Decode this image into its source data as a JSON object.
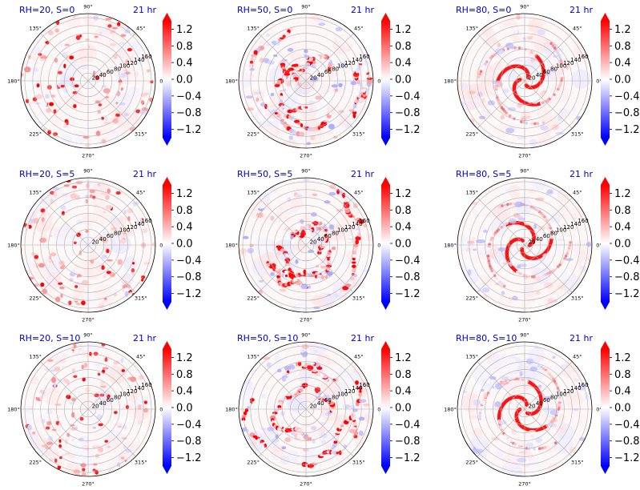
{
  "chart_data": {
    "type": "heatmap",
    "projection": "polar",
    "layout": "3x3 grid",
    "angle_ticks": [
      "0°",
      "45°",
      "90°",
      "135°",
      "180°",
      "225°",
      "270°",
      "315°"
    ],
    "radial_ticks": [
      "20",
      "40",
      "60",
      "80",
      "100",
      "120",
      "140",
      "160"
    ],
    "rlim": [
      0,
      170
    ],
    "grid": true,
    "colorbar": {
      "cmap": "bwr",
      "vmin": -1.4,
      "vmax": 1.4,
      "extend": "both",
      "ticks": [
        "1.2",
        "0.8",
        "0.4",
        "0.0",
        "−0.4",
        "−0.8",
        "−1.2"
      ],
      "colors": {
        "negative": "#0000ff",
        "zero": "#ffffff",
        "positive": "#ff0000"
      }
    },
    "panels": [
      {
        "title": "RH=20, S=0",
        "time": "21 hr",
        "pattern": "scattered"
      },
      {
        "title": "RH=50, S=0",
        "time": "21 hr",
        "pattern": "bands"
      },
      {
        "title": "RH=80, S=0",
        "time": "21 hr",
        "pattern": "spiral"
      },
      {
        "title": "RH=20, S=5",
        "time": "21 hr",
        "pattern": "scattered"
      },
      {
        "title": "RH=50, S=5",
        "time": "21 hr",
        "pattern": "bands"
      },
      {
        "title": "RH=80, S=5",
        "time": "21 hr",
        "pattern": "spiral"
      },
      {
        "title": "RH=20, S=10",
        "time": "21 hr",
        "pattern": "scattered"
      },
      {
        "title": "RH=50, S=10",
        "time": "21 hr",
        "pattern": "bands"
      },
      {
        "title": "RH=80, S=10",
        "time": "21 hr",
        "pattern": "spiral"
      }
    ]
  }
}
